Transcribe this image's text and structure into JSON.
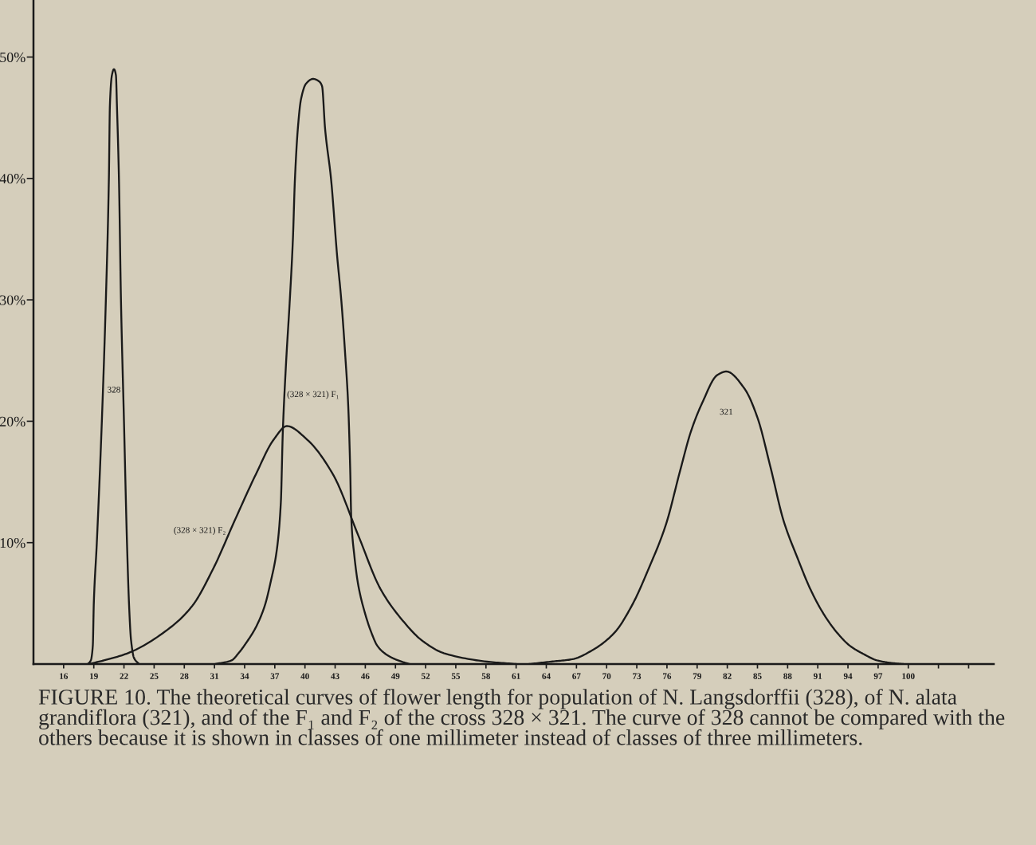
{
  "chart_data": {
    "type": "line",
    "line_style": "solid",
    "xlim": [
      13,
      108.5
    ],
    "ylim": [
      0,
      54.7
    ],
    "xticks": [
      16,
      19,
      22,
      25,
      28,
      31,
      34,
      37,
      40,
      43,
      46,
      49,
      52,
      55,
      58,
      61,
      64,
      67,
      70,
      73,
      76,
      79,
      82,
      85,
      88,
      91,
      94,
      97,
      100,
      {
        "value": 103,
        "label": null
      },
      {
        "value": 106,
        "label": null
      }
    ],
    "yticks": [
      {
        "value": 10,
        "label": "10%"
      },
      {
        "value": 20,
        "label": "20%"
      },
      {
        "value": 30,
        "label": "30%"
      },
      {
        "value": 40,
        "label": "40%"
      },
      {
        "value": 50,
        "label": "50%"
      }
    ],
    "series": [
      {
        "name": "328",
        "color": "#1a1a1a",
        "x": [
          18.4,
          18.7,
          18.9,
          19.0,
          19.3,
          19.8,
          20.2,
          20.5,
          20.6,
          20.8,
          21.0,
          21.2,
          21.3,
          21.5,
          21.7,
          22.0,
          22.3,
          22.5,
          22.7,
          23.0,
          23.5
        ],
        "values": [
          0,
          0.3,
          1.5,
          5.0,
          10.0,
          20.0,
          30.0,
          40.0,
          46.0,
          48.5,
          49.0,
          48.5,
          46.0,
          40.0,
          30.0,
          20.0,
          10.0,
          5.0,
          2.0,
          0.5,
          0
        ]
      },
      {
        "name": "(328 × 321) F₁",
        "color": "#1a1a1a",
        "x": [
          31.1,
          32.7,
          33.4,
          34.2,
          35.1,
          36.0,
          36.6,
          37.2,
          37.6,
          37.8,
          38.1,
          38.5,
          38.8,
          39.0,
          39.3,
          39.6,
          40.1,
          40.8,
          41.4,
          41.7,
          42.0,
          42.6,
          43.2,
          43.6,
          44.0,
          44.3,
          44.5,
          44.6,
          44.9,
          45.3,
          46.0,
          46.6,
          47.2,
          47.9,
          48.7,
          49.6,
          50.4
        ],
        "values": [
          0,
          0.3,
          0.9,
          1.8,
          3.0,
          4.8,
          6.8,
          9.4,
          13.3,
          19.2,
          24.5,
          30.1,
          35.0,
          39.9,
          44.2,
          46.5,
          47.8,
          48.2,
          48.0,
          47.6,
          44.1,
          39.9,
          33.6,
          30.1,
          25.5,
          21.3,
          16.0,
          12.1,
          9.0,
          6.5,
          4.1,
          2.6,
          1.5,
          0.9,
          0.5,
          0.2,
          0
        ]
      },
      {
        "name": "(328 × 321) F₂",
        "color": "#1a1a1a",
        "x": [
          18.5,
          20.0,
          22.4,
          26.6,
          28.8,
          30.9,
          33.0,
          35.1,
          36.9,
          38.2,
          40.2,
          42.8,
          45.3,
          47.5,
          49.6,
          51.7,
          53.8,
          58.1,
          61.0
        ],
        "values": [
          0,
          0.3,
          0.9,
          3.0,
          4.8,
          7.9,
          11.8,
          15.6,
          18.5,
          19.6,
          18.5,
          15.6,
          10.6,
          6.2,
          3.7,
          1.9,
          0.9,
          0.2,
          0
        ]
      },
      {
        "name": "321",
        "color": "#1a1a1a",
        "x": [
          62.3,
          64.5,
          66.6,
          68.7,
          70.8,
          72.5,
          74.2,
          75.9,
          77.3,
          78.4,
          79.5,
          81.0,
          81.9,
          83.7,
          85.0,
          86.3,
          87.6,
          89.0,
          90.3,
          91.6,
          92.9,
          94.2,
          95.6,
          96.9,
          98.2,
          99.5
        ],
        "values": [
          0,
          0.2,
          0.4,
          1.2,
          2.6,
          4.8,
          7.9,
          11.5,
          15.9,
          19.2,
          21.5,
          23.8,
          24.1,
          22.7,
          20.3,
          16.2,
          11.8,
          8.7,
          6.1,
          4.1,
          2.6,
          1.5,
          0.8,
          0.3,
          0.1,
          0
        ]
      }
    ],
    "annotations": [
      "FIGURE 10. The theoretical curves of flower length for population of N. Langsdorffii (328), of N. alata grandiflora (321), and of the F₁ and F₂ of the cross 328 × 321. The curve of 328 cannot be compared with the others because it is shown in classes of one millimeter instead of classes of three millimeters."
    ]
  }
}
